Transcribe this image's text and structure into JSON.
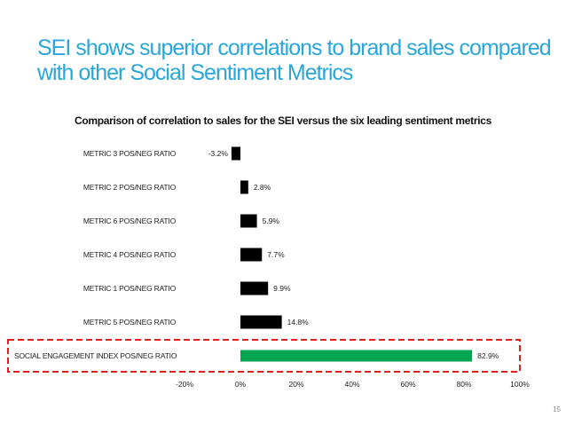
{
  "slide": {
    "title": "SEI shows superior correlations to brand sales compared with other Social Sentiment Metrics",
    "page_number": "15"
  },
  "colors": {
    "title": "#2aa6d9",
    "bar_default": "#000000",
    "bar_highlight": "#00a651",
    "highlight_box": "#e0201b"
  },
  "chart_data": {
    "type": "bar",
    "orientation": "horizontal",
    "title": "Comparison of correlation to sales for the SEI versus the six leading sentiment metrics",
    "categories": [
      "METRIC 3 POS/NEG RATIO",
      "METRIC 2 POS/NEG RATIO",
      "METRIC 6 POS/NEG RATIO",
      "METRIC 4 POS/NEG RATIO",
      "METRIC 1  POS/NEG RATIO",
      "METRIC 5 POS/NEG RATIO",
      "SOCIAL ENGAGEMENT INDEX POS/NEG RATIO"
    ],
    "values": [
      -3.2,
      2.8,
      5.9,
      7.7,
      9.9,
      14.8,
      82.9
    ],
    "value_labels": [
      "-3.2%",
      "2.8%",
      "5.9%",
      "7.7%",
      "9.9%",
      "14.8%",
      "82.9%"
    ],
    "highlight_index": 6,
    "xlim": [
      -20,
      100
    ],
    "x_ticks": [
      -20,
      0,
      20,
      40,
      60,
      80,
      100
    ],
    "x_tick_labels": [
      "-20%",
      "0%",
      "20%",
      "40%",
      "60%",
      "80%",
      "100%"
    ],
    "xlabel": "",
    "ylabel": "",
    "grid": false,
    "legend": "none"
  }
}
